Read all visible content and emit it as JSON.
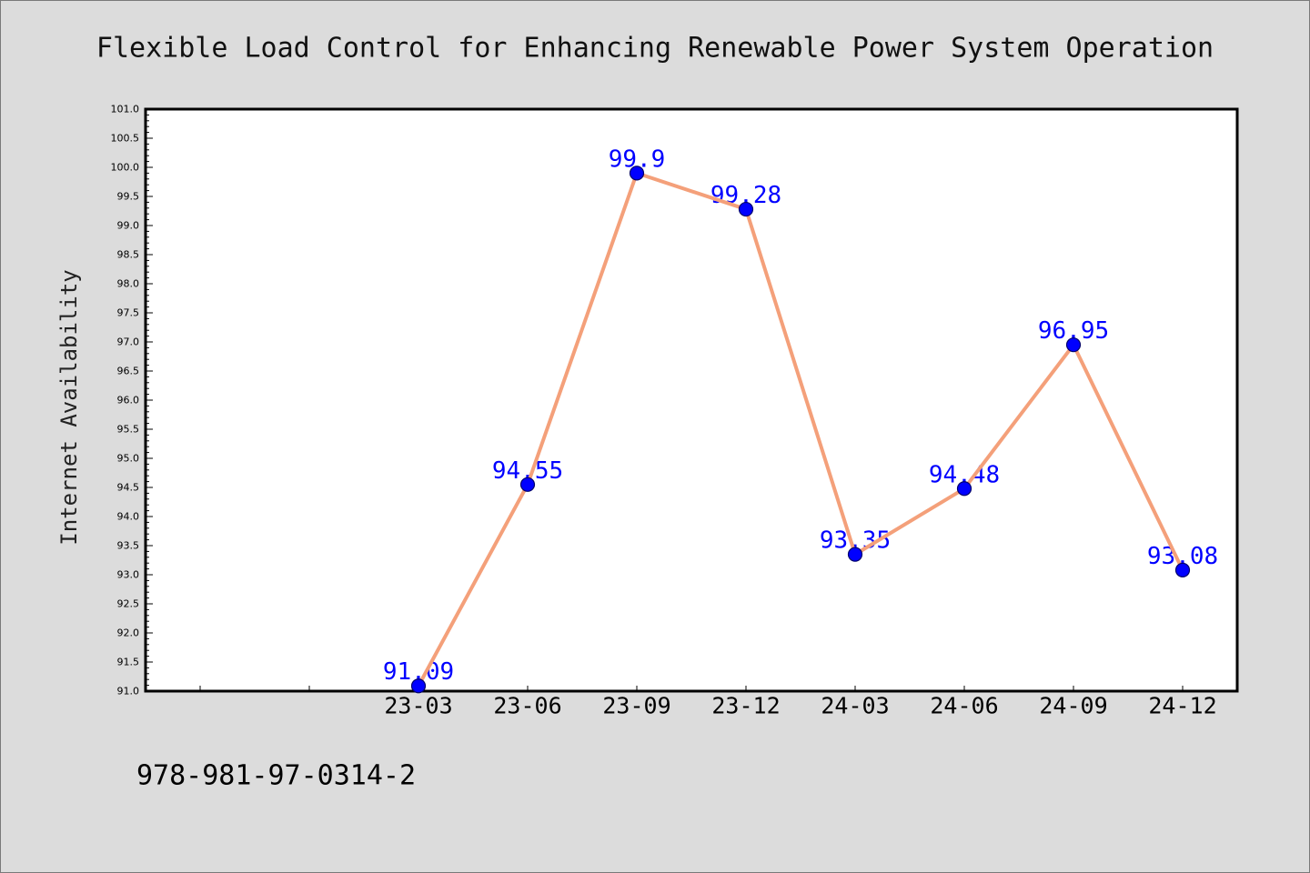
{
  "page": {
    "background": "#dcdcdc",
    "footer_text": "978-981-97-0314-2"
  },
  "chart_data": {
    "type": "line",
    "title": "Flexible Load Control for Enhancing Renewable Power System Operation",
    "xlabel": "",
    "ylabel": "Internet Availability",
    "x_tick_labels": [
      "",
      "",
      "23-03",
      "23-06",
      "23-09",
      "23-12",
      "24-03",
      "24-06",
      "24-09",
      "24-12"
    ],
    "x": [
      "23-03",
      "23-06",
      "23-09",
      "23-12",
      "24-03",
      "24-06",
      "24-09",
      "24-12"
    ],
    "series": [
      {
        "values": [
          91.09,
          94.55,
          99.9,
          99.28,
          93.35,
          94.48,
          96.95,
          93.08
        ],
        "line_color": "#f4a07a",
        "marker_color": "#0000ff",
        "label_color": "#0000ff",
        "show_data_labels": true
      }
    ],
    "ylim": [
      91.0,
      101.0
    ],
    "ytick_labels": [
      "91.0",
      "91.5",
      "92.0",
      "92.5",
      "93.0",
      "93.5",
      "94.0",
      "94.5",
      "95.0",
      "95.5",
      "96.0",
      "96.5",
      "97.0",
      "97.5",
      "98.0",
      "98.5",
      "99.0",
      "99.5",
      "100.0",
      "100.5",
      "101.0"
    ],
    "yminor_step": 0.1,
    "grid": false,
    "legend": "none",
    "plot_background": "#ffffff",
    "axis_color": "#000000"
  }
}
